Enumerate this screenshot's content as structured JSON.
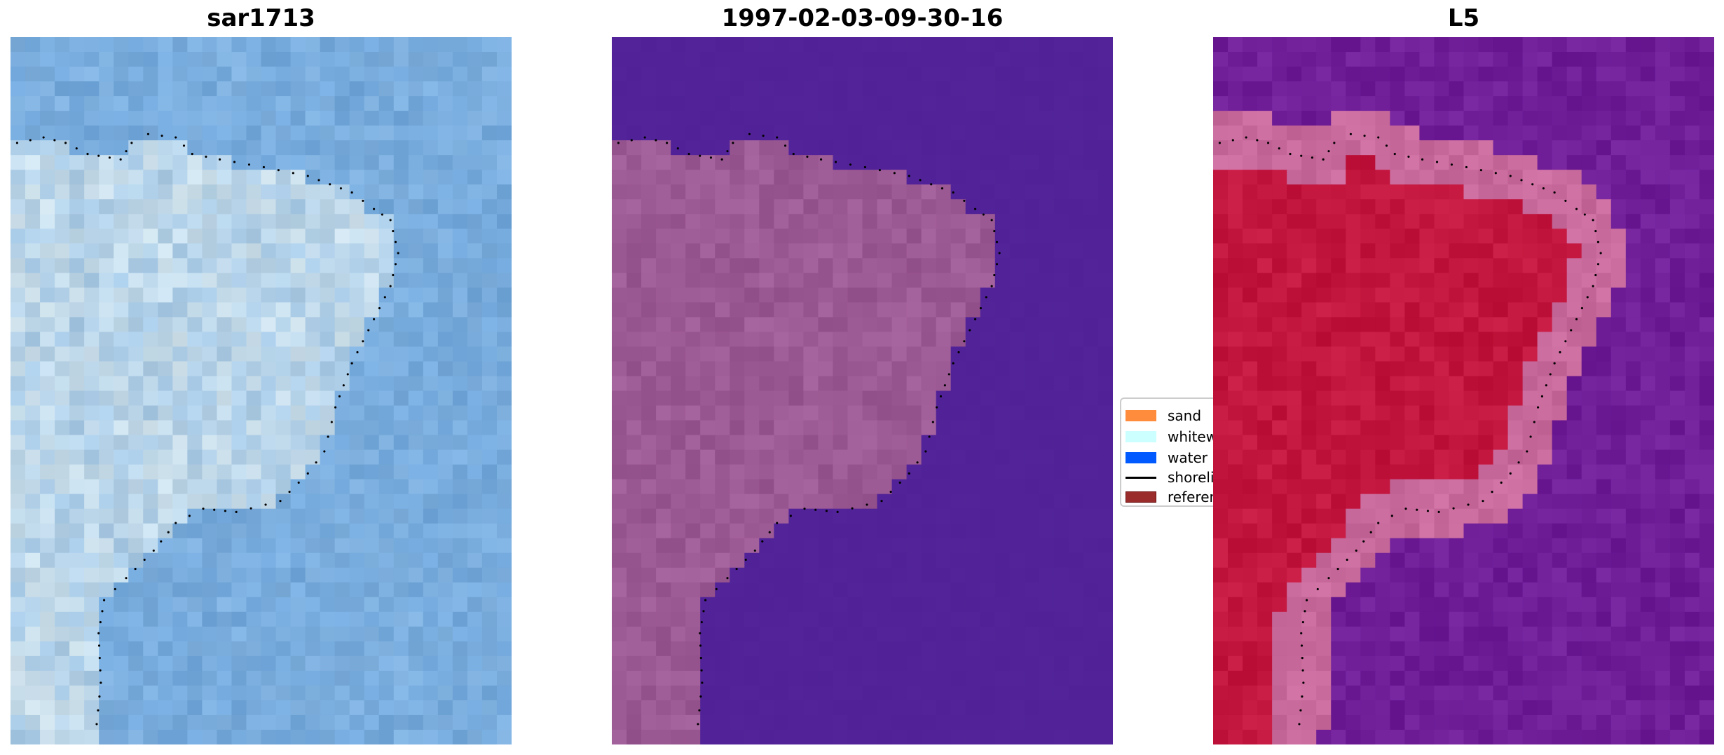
{
  "panels": [
    {
      "title": "sar1713",
      "style": "rgb"
    },
    {
      "title": "1997-02-03-09-30-16",
      "style": "classified"
    },
    {
      "title": "L5",
      "style": "probability"
    }
  ],
  "legend": {
    "items": [
      {
        "label": "sand",
        "color": "#ff8c3c",
        "kind": "patch"
      },
      {
        "label": "whitewater",
        "color": "#ccffff",
        "kind": "patch"
      },
      {
        "label": "water",
        "color": "#005aff",
        "kind": "patch"
      },
      {
        "label": "shoreline",
        "color": "#000000",
        "kind": "line"
      },
      {
        "label": "reference",
        "color": "#9a2c2c",
        "kind": "patch"
      }
    ]
  },
  "colors": {
    "rgb_water": "#72a8dc",
    "rgb_land": "#cfe2ec",
    "class_water": "#522398",
    "class_land": "#9c5a94",
    "prob_water": "#6f1e98",
    "prob_land": "#c2163e",
    "prob_edge": "#c86a9c"
  }
}
